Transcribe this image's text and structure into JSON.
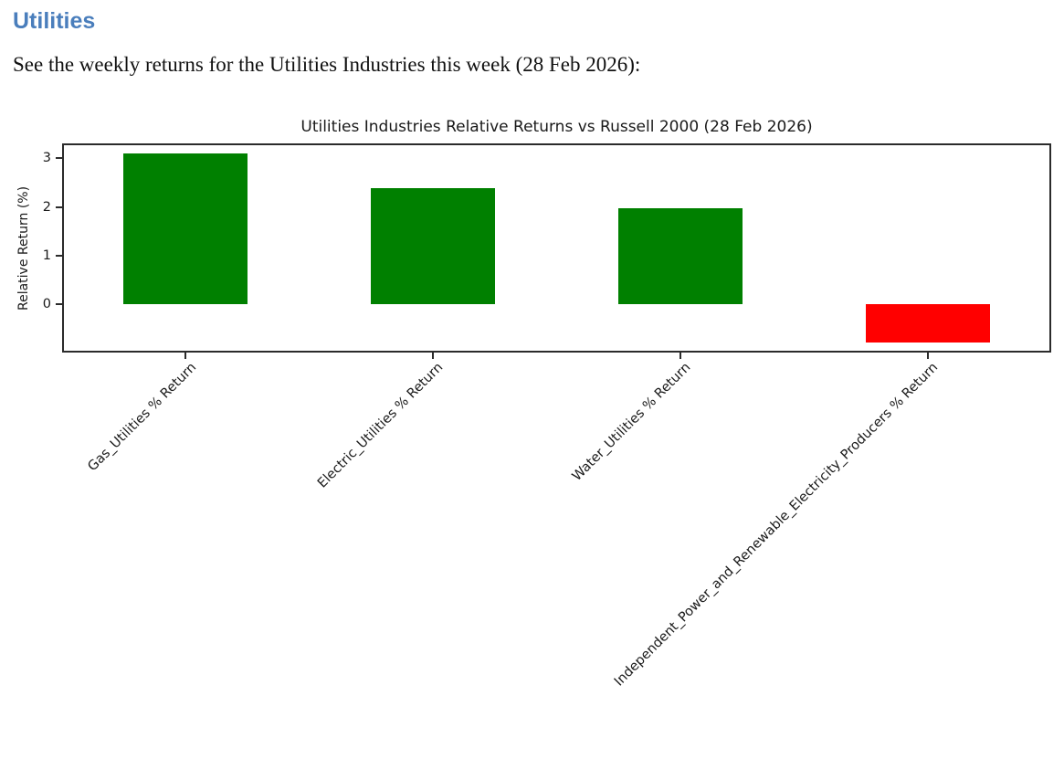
{
  "page": {
    "heading": "Utilities",
    "description": "See the weekly returns for the Utilities Industries this week (28 Feb 2026):"
  },
  "chart_data": {
    "type": "bar",
    "title": "Utilities Industries Relative Returns vs Russell 2000 (28 Feb 2026)",
    "xlabel": "",
    "ylabel": "Relative Return (%)",
    "categories": [
      "Gas_Utilities % Return",
      "Electric_Utilities % Return",
      "Water_Utilities % Return",
      "Independent_Power_and_Renewable_Electricity_Producers % Return"
    ],
    "values": [
      3.11,
      2.38,
      1.97,
      -0.8
    ],
    "bar_colors": [
      "#008000",
      "#008000",
      "#008000",
      "#ff0000"
    ],
    "positive_color": "#008000",
    "negative_color": "#ff0000",
    "yticks": [
      0,
      1,
      2,
      3
    ],
    "ylim": [
      -1.0,
      3.31
    ],
    "grid": false,
    "legend_position": "none",
    "x_tick_rotation_deg": 45
  },
  "colors": {
    "heading": "#4a7ebc",
    "axis": "#2b2b2b"
  }
}
